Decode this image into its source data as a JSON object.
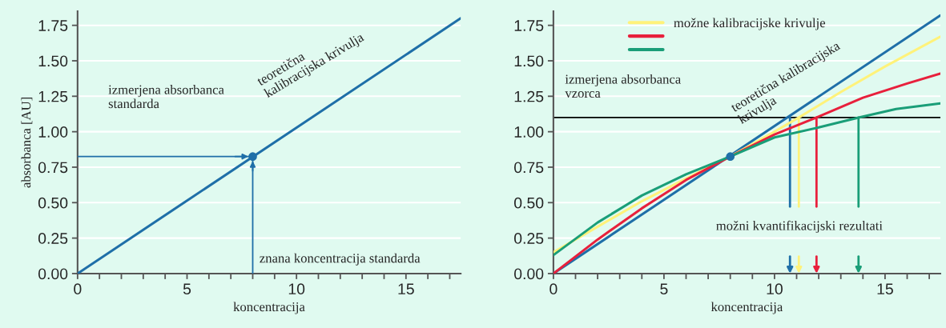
{
  "chart_data": [
    {
      "type": "line",
      "xlabel": "koncentracija",
      "ylabel": "absorbanca [AU]",
      "series": [
        {
          "color": "#1f6fa8",
          "x": [
            0,
            17.5
          ],
          "values": [
            0,
            1.8
          ]
        },
        {
          "type": "scatter",
          "color": "#1f6fa8",
          "x": [
            8
          ],
          "values": [
            0.825
          ],
          "marker": "circle"
        }
      ],
      "ref_lines": [
        {
          "axis": "y",
          "value": 0.825,
          "color": "#1f6fa8"
        },
        {
          "axis": "x",
          "value": 8,
          "color": "#1f6fa8"
        }
      ],
      "annotations": [
        "izmerjena absorbanca\nstandarda",
        "teoretična\nkalibracijska krivulja",
        {
          "text": "znana koncentracija standarda",
          "x": 8,
          "y": 0.1
        }
      ],
      "xlim": [
        0,
        17.5
      ],
      "ylim": [
        0,
        1.85
      ],
      "xticks": [
        0,
        {
          "value": 1,
          "label": null
        },
        {
          "value": 2,
          "label": null
        },
        {
          "value": 3,
          "label": null
        },
        {
          "value": 4,
          "label": null
        },
        5,
        {
          "value": 6,
          "label": null
        },
        {
          "value": 7,
          "label": null
        },
        {
          "value": 8,
          "label": null
        },
        {
          "value": 9,
          "label": null
        },
        10,
        {
          "value": 11,
          "label": null
        },
        {
          "value": 12,
          "label": null
        },
        {
          "value": 13,
          "label": null
        },
        {
          "value": 14,
          "label": null
        },
        15,
        {
          "value": 16,
          "label": null
        },
        {
          "value": 17,
          "label": null
        }
      ],
      "yticks": [
        {
          "value": 0,
          "label": "0.00"
        },
        {
          "value": 0.25,
          "label": "0.25"
        },
        {
          "value": 0.5,
          "label": "0.50"
        },
        {
          "value": 0.75,
          "label": "0.75"
        },
        {
          "value": 1,
          "label": "1.00"
        },
        {
          "value": 1.25,
          "label": "1.25"
        },
        {
          "value": 1.5,
          "label": "1.50"
        },
        {
          "value": 1.75,
          "label": "1.75"
        }
      ],
      "grid": "y",
      "legend": false
    },
    {
      "type": "line",
      "xlabel": "koncentracija",
      "series": [
        {
          "color": "#1f6fa8",
          "x": [
            0,
            17.5
          ],
          "values": [
            0,
            1.82
          ]
        },
        {
          "name": "možne kalibracijske krivulje",
          "color": "#fff27a",
          "x": [
            0,
            2,
            4,
            6,
            8,
            10,
            11.1,
            13,
            15,
            17.5
          ],
          "values": [
            0.15,
            0.33,
            0.51,
            0.67,
            0.825,
            1.0,
            1.1,
            1.28,
            1.46,
            1.67
          ]
        },
        {
          "color": "#e8203c",
          "x": [
            0,
            2,
            4,
            6,
            8,
            10,
            11.9,
            14,
            16,
            17.5
          ],
          "values": [
            0,
            0.24,
            0.46,
            0.66,
            0.825,
            0.98,
            1.1,
            1.24,
            1.34,
            1.41
          ]
        },
        {
          "color": "#1a9e78",
          "x": [
            0,
            2,
            4,
            6,
            8,
            10,
            12,
            13.8,
            15.5,
            17.5
          ],
          "values": [
            0.13,
            0.36,
            0.55,
            0.7,
            0.825,
            0.96,
            1.03,
            1.1,
            1.16,
            1.2
          ]
        },
        {
          "type": "scatter",
          "color": "#1f6fa8",
          "x": [
            8
          ],
          "values": [
            0.825
          ],
          "marker": "circle"
        }
      ],
      "ref_lines": [
        {
          "axis": "y",
          "value": 1.1,
          "color": "#000000"
        },
        {
          "axis": "x",
          "value": 10.7,
          "color": "#1f6fa8"
        },
        {
          "axis": "x",
          "value": 11.1,
          "color": "#fff27a"
        },
        {
          "axis": "x",
          "value": 11.9,
          "color": "#e8203c"
        },
        {
          "axis": "x",
          "value": 13.8,
          "color": "#1a9e78"
        }
      ],
      "annotations": [
        "izmerjena absorbanca\nvzorca",
        "teoretična kalibracijska\nkrivulja",
        "možni kvantifikacijski rezultati"
      ],
      "xlim": [
        0,
        17.5
      ],
      "ylim": [
        0,
        1.85
      ],
      "xticks": [
        0,
        {
          "value": 1,
          "label": null
        },
        {
          "value": 2,
          "label": null
        },
        {
          "value": 3,
          "label": null
        },
        {
          "value": 4,
          "label": null
        },
        5,
        {
          "value": 6,
          "label": null
        },
        {
          "value": 7,
          "label": null
        },
        {
          "value": 8,
          "label": null
        },
        {
          "value": 9,
          "label": null
        },
        10,
        {
          "value": 11,
          "label": null
        },
        {
          "value": 12,
          "label": null
        },
        {
          "value": 13,
          "label": null
        },
        {
          "value": 14,
          "label": null
        },
        15,
        {
          "value": 16,
          "label": null
        },
        {
          "value": 17,
          "label": null
        }
      ],
      "yticks": [
        {
          "value": 0,
          "label": "0.00"
        },
        {
          "value": 0.25,
          "label": "0.25"
        },
        {
          "value": 0.5,
          "label": "0.50"
        },
        {
          "value": 0.75,
          "label": "0.75"
        },
        {
          "value": 1,
          "label": "1.00"
        },
        {
          "value": 1.25,
          "label": "1.25"
        },
        {
          "value": 1.5,
          "label": "1.50"
        },
        {
          "value": 1.75,
          "label": "1.75"
        }
      ],
      "grid": "y",
      "legend": "top"
    }
  ]
}
